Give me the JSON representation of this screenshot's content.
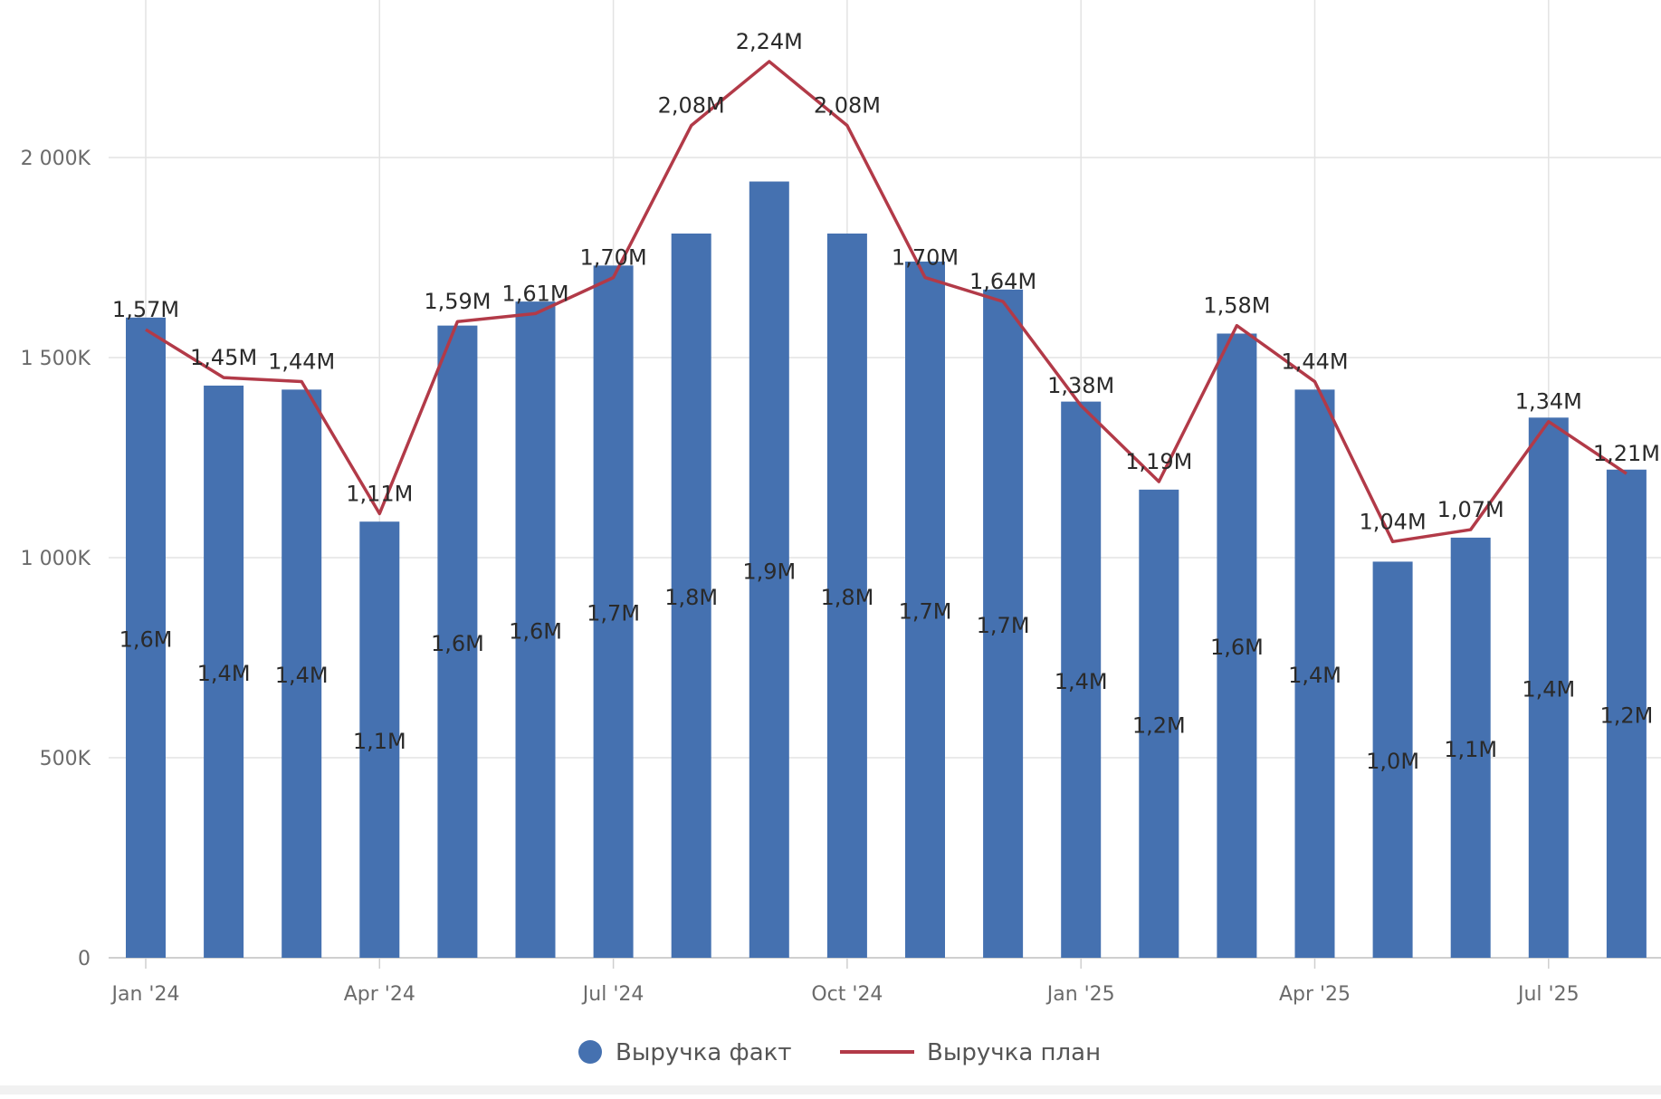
{
  "chart_data": {
    "type": "bar",
    "categories": [
      "Jan '24",
      "Feb '24",
      "Mar '24",
      "Apr '24",
      "May '24",
      "Jun '24",
      "Jul '24",
      "Aug '24",
      "Sep '24",
      "Oct '24",
      "Nov '24",
      "Dec '24",
      "Jan '25",
      "Feb '25",
      "Mar '25",
      "Apr '25",
      "May '25",
      "Jun '25",
      "Jul '25",
      "Aug '25"
    ],
    "x_tick_labels": [
      "Jan '24",
      "Apr '24",
      "Jul '24",
      "Oct '24",
      "Jan '25",
      "Apr '25",
      "Jul '25"
    ],
    "y_ticks": [
      0,
      500000,
      1000000,
      1500000,
      2000000
    ],
    "y_tick_labels": [
      "0",
      "500K",
      "1 000K",
      "1 500K",
      "2 000K"
    ],
    "ylim": [
      0,
      2400000
    ],
    "grid": true,
    "legend_position": "bottom",
    "series": [
      {
        "name": "Выручка факт",
        "type": "bar",
        "color": "#4571b0",
        "values": [
          1600000,
          1430000,
          1420000,
          1090000,
          1580000,
          1640000,
          1730000,
          1810000,
          1940000,
          1810000,
          1740000,
          1670000,
          1390000,
          1170000,
          1560000,
          1420000,
          990000,
          1050000,
          1350000,
          1220000
        ],
        "labels": [
          "1,6M",
          "1,4M",
          "1,4M",
          "1,1M",
          "1,6M",
          "1,6M",
          "1,7M",
          "1,8M",
          "1,9M",
          "1,8M",
          "1,7M",
          "1,7M",
          "1,4M",
          "1,2M",
          "1,6M",
          "1,4M",
          "1,0M",
          "1,1M",
          "1,4M",
          "1,2M"
        ]
      },
      {
        "name": "Выручка план",
        "type": "line",
        "color": "#b23a48",
        "values": [
          1570000,
          1450000,
          1440000,
          1110000,
          1590000,
          1610000,
          1700000,
          2080000,
          2240000,
          2080000,
          1700000,
          1640000,
          1380000,
          1190000,
          1580000,
          1440000,
          1040000,
          1070000,
          1340000,
          1210000
        ],
        "labels": [
          "1,57M",
          "1,45M",
          "1,44M",
          "1,11M",
          "1,59M",
          "1,61M",
          "1,70M",
          "2,08M",
          "2,24M",
          "2,08M",
          "1,70M",
          "1,64M",
          "1,38M",
          "1,19M",
          "1,58M",
          "1,44M",
          "1,04M",
          "1,07M",
          "1,34M",
          "1,21M"
        ]
      }
    ]
  }
}
